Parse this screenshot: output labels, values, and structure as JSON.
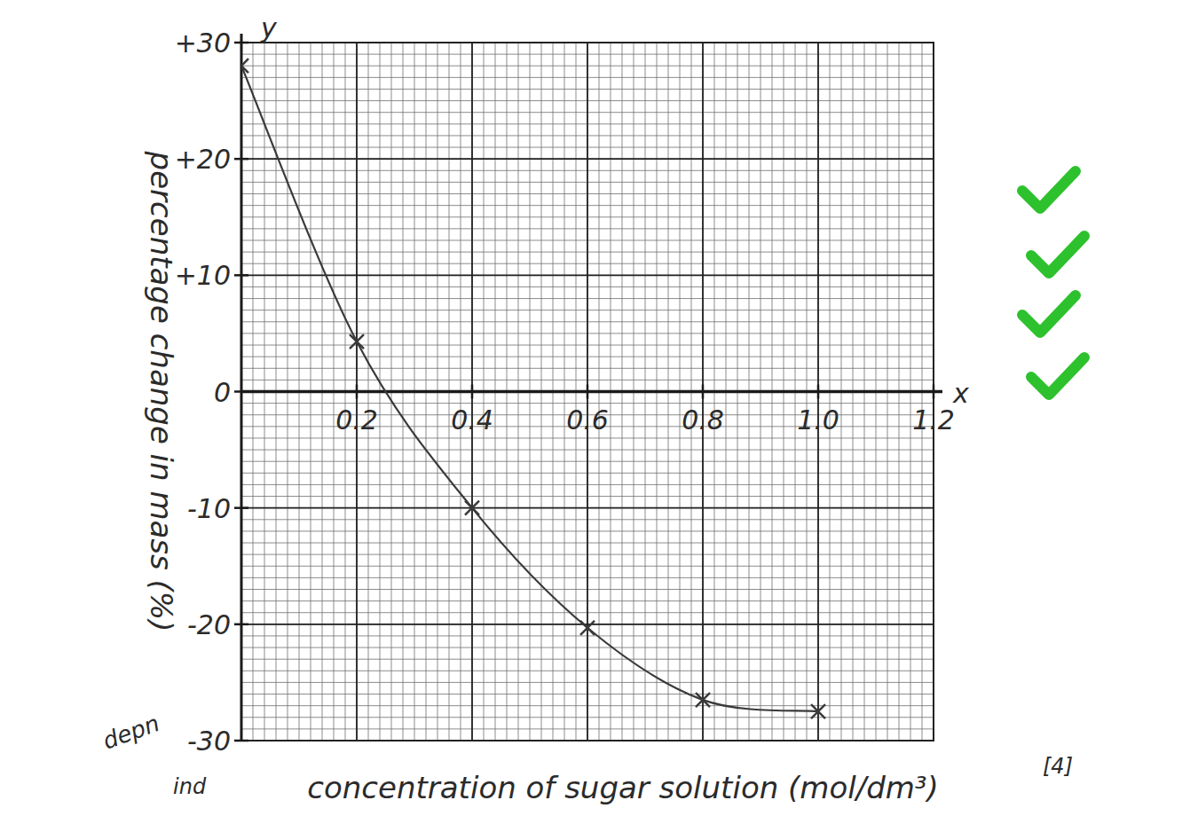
{
  "chart_data": {
    "type": "line",
    "x_label": "concentration of sugar solution (mol/dm³)",
    "y_label": "percentage change in mass (%)",
    "x": [
      0,
      0.2,
      0.4,
      0.6,
      0.8,
      1.0
    ],
    "values": [
      28,
      4.3,
      -10,
      -20.3,
      -26.5,
      -27.5
    ],
    "xlim": [
      0,
      1.2
    ],
    "ylim": [
      -30,
      30
    ],
    "xticks": [
      0.2,
      0.4,
      0.6,
      0.8,
      {
        "value": 1,
        "label": "1.0"
      },
      1.2
    ],
    "yticks": [
      {
        "value": 30,
        "label": "+30"
      },
      {
        "value": 20,
        "label": "+20"
      },
      {
        "value": 10,
        "label": "+10"
      },
      0,
      -10,
      -20,
      -30
    ],
    "grid": true,
    "marker": "x",
    "line_style": "solid",
    "color": "#3a3a3a",
    "annotations": [
      "y",
      "x",
      "depn",
      "ind",
      "[4]"
    ]
  }
}
